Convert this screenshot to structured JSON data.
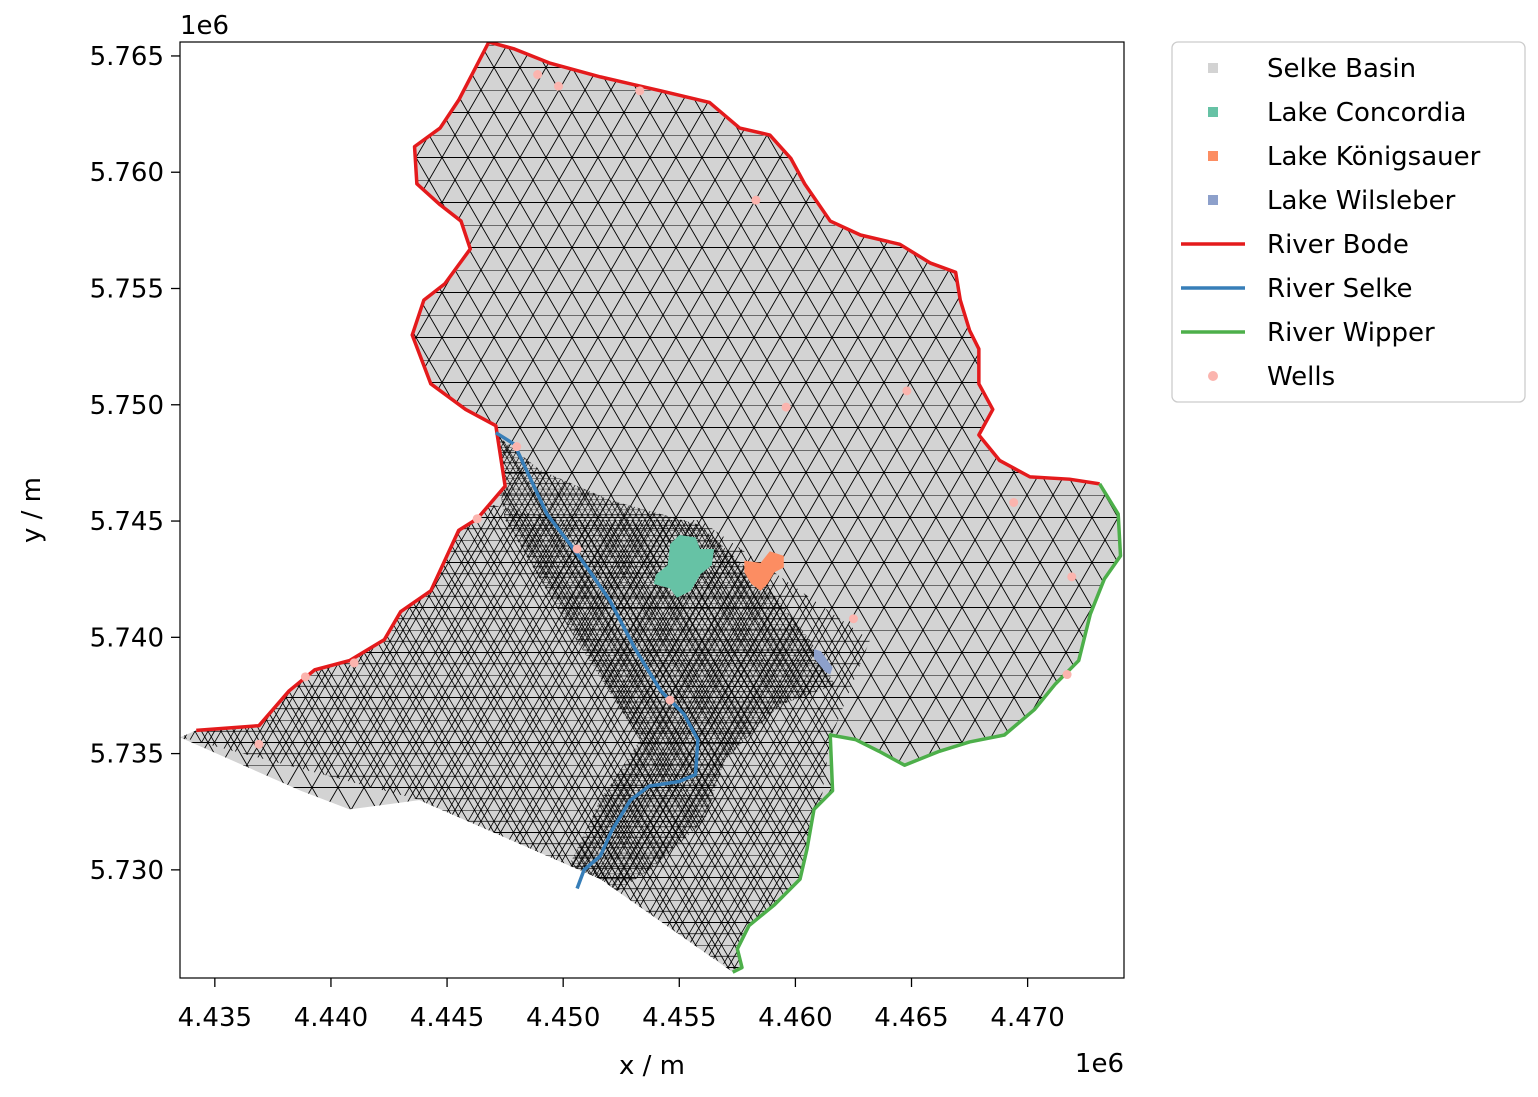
{
  "chart_data": {
    "type": "mesh",
    "xlabel": "x / m",
    "ylabel": "y / m",
    "x_offset_label": "1e6",
    "y_offset_label": "1e6",
    "xlim": [
      4433500,
      4474150
    ],
    "ylim": [
      5725350,
      5765600
    ],
    "xticks": [
      {
        "value": 4435000,
        "label": "4.435"
      },
      {
        "value": 4440000,
        "label": "4.440"
      },
      {
        "value": 4445000,
        "label": "4.445"
      },
      {
        "value": 4450000,
        "label": "4.450"
      },
      {
        "value": 4455000,
        "label": "4.455"
      },
      {
        "value": 4460000,
        "label": "4.460"
      },
      {
        "value": 4465000,
        "label": "4.465"
      },
      {
        "value": 4470000,
        "label": "4.470"
      }
    ],
    "yticks": [
      {
        "value": 5730000,
        "label": "5.730"
      },
      {
        "value": 5735000,
        "label": "5.735"
      },
      {
        "value": 5740000,
        "label": "5.740"
      },
      {
        "value": 5745000,
        "label": "5.745"
      },
      {
        "value": 5750000,
        "label": "5.750"
      },
      {
        "value": 5755000,
        "label": "5.755"
      },
      {
        "value": 5760000,
        "label": "5.760"
      },
      {
        "value": 5765000,
        "label": "5.765"
      }
    ],
    "legend": "outside-upper-right",
    "series": [
      {
        "name": "Selke Basin",
        "kind": "polygon",
        "mesh": true,
        "color": "#d3d3d3",
        "x": [
          4434200,
          4436900,
          4438200,
          4439300,
          4440800,
          4442300,
          4443000,
          4444300,
          4445500,
          4446300,
          4447500,
          4447100,
          4445800,
          4444300,
          4443500,
          4444000,
          4444900,
          4446000,
          4445600,
          4444700,
          4443700,
          4443600,
          4444700,
          4445500,
          4446800,
          4447900,
          4449400,
          4451600,
          4454200,
          4456300,
          4457600,
          4458900,
          4459800,
          4460400,
          4461500,
          4462800,
          4464500,
          4465800,
          4466900,
          4467100,
          4467500,
          4467900,
          4467900,
          4468500,
          4467900,
          4468800,
          4470100,
          4471800,
          4473100,
          4473900,
          4474000,
          4473300,
          4472700,
          4472200,
          4471200,
          4470300,
          4469000,
          4467500,
          4466200,
          4464700,
          4463600,
          4462600,
          4461500,
          4461600,
          4460800,
          4460500,
          4460200,
          4459100,
          4458000,
          4457500,
          4457700,
          4457300,
          4451600,
          4443800,
          4440800,
          4438700,
          4433500
        ],
        "y": [
          5736000,
          5736200,
          5737700,
          5738600,
          5739000,
          5739900,
          5741100,
          5742000,
          5744600,
          5745100,
          5746500,
          5749100,
          5749800,
          5750900,
          5753000,
          5754500,
          5755200,
          5756700,
          5757900,
          5758600,
          5759500,
          5761100,
          5761900,
          5763100,
          5765600,
          5765300,
          5764700,
          5764100,
          5763500,
          5763000,
          5761900,
          5761600,
          5760600,
          5759500,
          5757900,
          5757300,
          5756900,
          5756100,
          5755700,
          5754500,
          5753200,
          5752400,
          5750900,
          5749800,
          5748700,
          5747600,
          5746900,
          5746800,
          5746600,
          5745300,
          5743500,
          5742500,
          5741000,
          5739000,
          5738000,
          5736900,
          5735800,
          5735500,
          5735100,
          5734500,
          5735100,
          5735600,
          5735800,
          5733400,
          5732600,
          5730900,
          5729600,
          5728500,
          5727600,
          5726600,
          5725800,
          5725600,
          5729600,
          5733000,
          5732600,
          5733400,
          5735700
        ]
      },
      {
        "name": "Lake Concordia",
        "kind": "polygon",
        "color": "#66c2a5",
        "x": [
          4454600,
          4455000,
          4455700,
          4455900,
          4456500,
          4456400,
          4455900,
          4455500,
          4454900,
          4454600,
          4453900,
          4454000,
          4454500
        ],
        "y": [
          5744000,
          5744400,
          5744300,
          5743800,
          5743800,
          5743100,
          5742700,
          5742000,
          5741700,
          5742100,
          5742300,
          5742700,
          5743100
        ]
      },
      {
        "name": "Lake Königsauer",
        "kind": "polygon",
        "color": "#fc8d62",
        "x": [
          4457800,
          4458500,
          4458900,
          4459500,
          4459500,
          4459100,
          4458800,
          4458500,
          4458100,
          4457800
        ],
        "y": [
          5743300,
          5743200,
          5743700,
          5743500,
          5743000,
          5742800,
          5742300,
          5742000,
          5742300,
          5742800
        ]
      },
      {
        "name": "Lake Wilsleber",
        "kind": "polygon",
        "color": "#8da0cb",
        "x": [
          4460800,
          4461100,
          4461600,
          4461500,
          4461300,
          4460800
        ],
        "y": [
          5739500,
          5739400,
          5738700,
          5738400,
          5738500,
          5739100
        ]
      },
      {
        "name": "River Bode",
        "kind": "line",
        "color": "#e41a1c",
        "x": [
          4434200,
          4436900,
          4438200,
          4439300,
          4440800,
          4442300,
          4443000,
          4444300,
          4445500,
          4446300,
          4447500,
          4447100,
          4445800,
          4444300,
          4443500,
          4444000,
          4444900,
          4446000,
          4445600,
          4444700,
          4443700,
          4443600,
          4444700,
          4445500,
          4446800,
          4447900,
          4449400,
          4451600,
          4454200,
          4456300,
          4457600,
          4458900,
          4459800,
          4460400,
          4461500,
          4462800,
          4464500,
          4465800,
          4466900,
          4467100,
          4467500,
          4467900,
          4467900,
          4468500,
          4467900,
          4468800,
          4470100,
          4471800,
          4473100
        ],
        "y": [
          5736000,
          5736200,
          5737700,
          5738600,
          5739000,
          5739900,
          5741100,
          5742000,
          5744600,
          5745100,
          5746500,
          5749100,
          5749800,
          5750900,
          5753000,
          5754500,
          5755200,
          5756700,
          5757900,
          5758600,
          5759500,
          5761100,
          5761900,
          5763100,
          5765600,
          5765300,
          5764700,
          5764100,
          5763500,
          5763000,
          5761900,
          5761600,
          5760600,
          5759500,
          5757900,
          5757300,
          5756900,
          5756100,
          5755700,
          5754500,
          5753200,
          5752400,
          5750900,
          5749800,
          5748700,
          5747600,
          5746900,
          5746800,
          5746600
        ]
      },
      {
        "name": "River Selke",
        "kind": "line",
        "color": "#377eb8",
        "x": [
          4447100,
          4447900,
          4448600,
          4449300,
          4450300,
          4451100,
          4452000,
          4453100,
          4454200,
          4455200,
          4455800,
          4455700,
          4455000,
          4453700,
          4452900,
          4452100,
          4451600,
          4450900,
          4450600
        ],
        "y": [
          5748800,
          5748300,
          5746800,
          5745300,
          5744000,
          5742900,
          5741600,
          5739500,
          5737700,
          5736700,
          5735600,
          5734100,
          5733800,
          5733600,
          5733000,
          5731700,
          5730600,
          5730000,
          5729200
        ]
      },
      {
        "name": "River Wipper",
        "kind": "line",
        "color": "#4daf4a",
        "x": [
          4473100,
          4473900,
          4474000,
          4473300,
          4472700,
          4472200,
          4471200,
          4470300,
          4469000,
          4467500,
          4466200,
          4464700,
          4463600,
          4462600,
          4461500,
          4461600,
          4460800,
          4460500,
          4460200,
          4459100,
          4458000,
          4457500,
          4457700,
          4457300
        ],
        "y": [
          5746600,
          5745300,
          5743500,
          5742500,
          5741000,
          5739000,
          5738000,
          5736900,
          5735800,
          5735500,
          5735100,
          5734500,
          5735100,
          5735600,
          5735800,
          5733400,
          5732600,
          5730900,
          5729600,
          5728500,
          5727600,
          5726600,
          5725800,
          5725600
        ]
      },
      {
        "name": "Wells",
        "kind": "scatter",
        "color": "#fbb4ae",
        "x": [
          4448900,
          4449800,
          4453300,
          4458300,
          4459600,
          4464800,
          4469400,
          4471900,
          4471700,
          4462500,
          4454600,
          4450600,
          4446300,
          4448000,
          4441000,
          4438900,
          4436900
        ],
        "y": [
          5764200,
          5763700,
          5763500,
          5758800,
          5749900,
          5750600,
          5745800,
          5742600,
          5738400,
          5740800,
          5737300,
          5743800,
          5745100,
          5748200,
          5738900,
          5738300,
          5735400
        ]
      }
    ]
  }
}
